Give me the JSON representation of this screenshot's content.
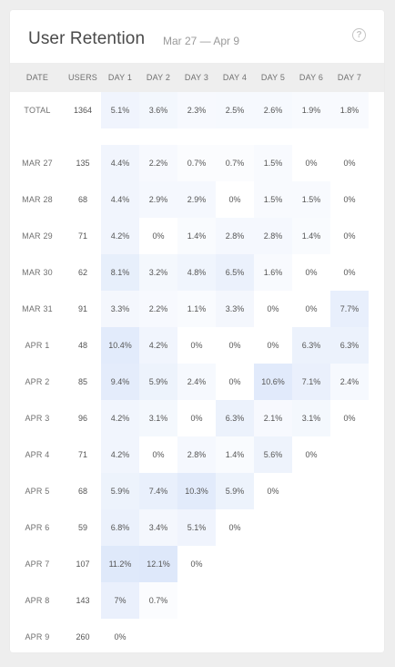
{
  "header": {
    "title": "User Retention",
    "date_range": "Mar 27 — Apr 9",
    "help_icon": "question-circle-icon"
  },
  "columns": [
    "DATE",
    "USERS",
    "DAY 1",
    "DAY 2",
    "DAY 3",
    "DAY 4",
    "DAY 5",
    "DAY 6",
    "DAY 7"
  ],
  "total_row": {
    "label": "TOTAL",
    "users": "1364",
    "values": [
      "5.1%",
      "3.6%",
      "2.3%",
      "2.5%",
      "2.6%",
      "1.9%",
      "1.8%"
    ]
  },
  "rows": [
    {
      "date": "MAR 27",
      "users": "135",
      "values": [
        "4.4%",
        "2.2%",
        "0.7%",
        "0.7%",
        "1.5%",
        "0%",
        "0%"
      ]
    },
    {
      "date": "MAR 28",
      "users": "68",
      "values": [
        "4.4%",
        "2.9%",
        "2.9%",
        "0%",
        "1.5%",
        "1.5%",
        "0%"
      ]
    },
    {
      "date": "MAR 29",
      "users": "71",
      "values": [
        "4.2%",
        "0%",
        "1.4%",
        "2.8%",
        "2.8%",
        "1.4%",
        "0%"
      ]
    },
    {
      "date": "MAR 30",
      "users": "62",
      "values": [
        "8.1%",
        "3.2%",
        "4.8%",
        "6.5%",
        "1.6%",
        "0%",
        "0%"
      ]
    },
    {
      "date": "MAR 31",
      "users": "91",
      "values": [
        "3.3%",
        "2.2%",
        "1.1%",
        "3.3%",
        "0%",
        "0%",
        "7.7%"
      ]
    },
    {
      "date": "APR 1",
      "users": "48",
      "values": [
        "10.4%",
        "4.2%",
        "0%",
        "0%",
        "0%",
        "6.3%",
        "6.3%"
      ]
    },
    {
      "date": "APR 2",
      "users": "85",
      "values": [
        "9.4%",
        "5.9%",
        "2.4%",
        "0%",
        "10.6%",
        "7.1%",
        "2.4%"
      ]
    },
    {
      "date": "APR 3",
      "users": "96",
      "values": [
        "4.2%",
        "3.1%",
        "0%",
        "6.3%",
        "2.1%",
        "3.1%",
        "0%"
      ]
    },
    {
      "date": "APR 4",
      "users": "71",
      "values": [
        "4.2%",
        "0%",
        "2.8%",
        "1.4%",
        "5.6%",
        "0%"
      ]
    },
    {
      "date": "APR 5",
      "users": "68",
      "values": [
        "5.9%",
        "7.4%",
        "10.3%",
        "5.9%",
        "0%"
      ]
    },
    {
      "date": "APR 6",
      "users": "59",
      "values": [
        "6.8%",
        "3.4%",
        "5.1%",
        "0%"
      ]
    },
    {
      "date": "APR 7",
      "users": "107",
      "values": [
        "11.2%",
        "12.1%",
        "0%"
      ]
    },
    {
      "date": "APR 8",
      "users": "143",
      "values": [
        "7%",
        "0.7%"
      ]
    },
    {
      "date": "APR 9",
      "users": "260",
      "values": [
        "0%"
      ]
    }
  ],
  "colors": {
    "heat_base": "#2f6fe0",
    "card_bg": "#ffffff",
    "header_bg": "#eeeeee"
  }
}
